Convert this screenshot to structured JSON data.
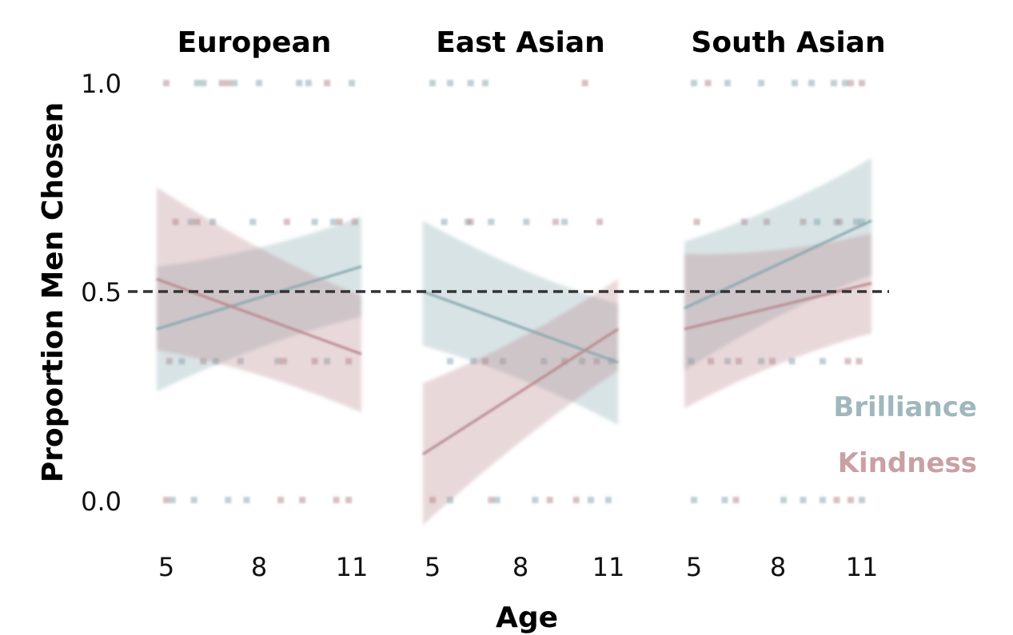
{
  "chart_data": {
    "type": "line",
    "xlabel": "Age",
    "ylabel": "Proportion Men Chosen",
    "ylim": [
      0,
      1
    ],
    "y_ticks": [
      "0.0",
      "0.5",
      "1.0"
    ],
    "x_ticks": [
      "5",
      "8",
      "11"
    ],
    "xlim": [
      5,
      11
    ],
    "reference_line": {
      "y": 0.5,
      "style": "dashed",
      "color": "#333333"
    },
    "legend": {
      "placement": "right",
      "items": [
        {
          "name": "Brilliance",
          "color": "#9fb7bd"
        },
        {
          "name": "Kindness",
          "color": "#c9a0a3"
        }
      ]
    },
    "colors": {
      "Brilliance": "#8aa9b0",
      "Kindness": "#b98a8f"
    },
    "panels": [
      {
        "title": "European",
        "series": [
          {
            "name": "Brilliance",
            "x": [
              5,
              11
            ],
            "y": [
              0.41,
              0.56
            ],
            "ci_low": [
              0.26,
              0.44
            ],
            "ci_high": [
              0.56,
              0.68
            ]
          },
          {
            "name": "Kindness",
            "x": [
              5,
              11
            ],
            "y": [
              0.53,
              0.35
            ],
            "ci_low": [
              0.36,
              0.21
            ],
            "ci_high": [
              0.75,
              0.49
            ]
          }
        ],
        "points": {
          "Brilliance": [
            [
              6.0,
              1
            ],
            [
              6.2,
              1
            ],
            [
              7.2,
              1
            ],
            [
              8.0,
              1
            ],
            [
              9.3,
              1
            ],
            [
              9.6,
              1
            ],
            [
              11.0,
              1
            ],
            [
              5.8,
              0.667
            ],
            [
              6.5,
              0.667
            ],
            [
              7.8,
              0.667
            ],
            [
              9.8,
              0.667
            ],
            [
              10.4,
              0.667
            ],
            [
              5.5,
              0.333
            ],
            [
              6.6,
              0.333
            ],
            [
              7.4,
              0.333
            ],
            [
              8.6,
              0.333
            ],
            [
              10.2,
              0.333
            ],
            [
              5.2,
              0
            ],
            [
              5.9,
              0
            ],
            [
              7.0,
              0
            ],
            [
              7.6,
              0
            ]
          ],
          "Kindness": [
            [
              5.0,
              1
            ],
            [
              6.8,
              1
            ],
            [
              7.0,
              1
            ],
            [
              10.2,
              1
            ],
            [
              5.3,
              0.667
            ],
            [
              6.0,
              0.667
            ],
            [
              8.9,
              0.667
            ],
            [
              10.6,
              0.667
            ],
            [
              11.1,
              0.667
            ],
            [
              5.1,
              0.333
            ],
            [
              6.2,
              0.333
            ],
            [
              8.8,
              0.333
            ],
            [
              9.8,
              0.333
            ],
            [
              10.9,
              0.333
            ],
            [
              5.0,
              0
            ],
            [
              8.7,
              0
            ],
            [
              9.4,
              0
            ],
            [
              10.5,
              0
            ],
            [
              10.9,
              0
            ]
          ]
        }
      },
      {
        "title": "East Asian",
        "series": [
          {
            "name": "Brilliance",
            "x": [
              5,
              11
            ],
            "y": [
              0.5,
              0.33
            ],
            "ci_low": [
              0.37,
              0.18
            ],
            "ci_high": [
              0.67,
              0.47
            ]
          },
          {
            "name": "Kindness",
            "x": [
              5,
              11
            ],
            "y": [
              0.11,
              0.41
            ],
            "ci_low": [
              -0.06,
              0.31
            ],
            "ci_high": [
              0.28,
              0.53
            ]
          }
        ],
        "points": {
          "Brilliance": [
            [
              5.0,
              1
            ],
            [
              5.6,
              1
            ],
            [
              6.3,
              1
            ],
            [
              6.8,
              1
            ],
            [
              5.4,
              0.667
            ],
            [
              6.2,
              0.667
            ],
            [
              7.0,
              0.667
            ],
            [
              8.2,
              0.667
            ],
            [
              9.5,
              0.667
            ],
            [
              5.6,
              0.333
            ],
            [
              6.4,
              0.333
            ],
            [
              7.4,
              0.333
            ],
            [
              8.8,
              0.333
            ],
            [
              10.1,
              0.333
            ],
            [
              11.1,
              0.333
            ],
            [
              5.6,
              0
            ],
            [
              7.2,
              0
            ],
            [
              8.5,
              0
            ],
            [
              10.4,
              0
            ],
            [
              11.0,
              0
            ]
          ],
          "Kindness": [
            [
              10.2,
              1
            ],
            [
              6.3,
              0.667
            ],
            [
              9.2,
              0.667
            ],
            [
              10.7,
              0.667
            ],
            [
              6.8,
              0.333
            ],
            [
              9.5,
              0.333
            ],
            [
              10.6,
              0.333
            ],
            [
              5.0,
              0
            ],
            [
              7.0,
              0
            ],
            [
              9.0,
              0
            ],
            [
              9.9,
              0
            ]
          ]
        }
      },
      {
        "title": "South Asian",
        "series": [
          {
            "name": "Brilliance",
            "x": [
              5,
              11
            ],
            "y": [
              0.46,
              0.67
            ],
            "ci_low": [
              0.31,
              0.54
            ],
            "ci_high": [
              0.62,
              0.82
            ]
          },
          {
            "name": "Kindness",
            "x": [
              5,
              11
            ],
            "y": [
              0.41,
              0.52
            ],
            "ci_low": [
              0.22,
              0.4
            ],
            "ci_high": [
              0.59,
              0.64
            ]
          }
        ],
        "points": {
          "Brilliance": [
            [
              5.0,
              1
            ],
            [
              6.2,
              1
            ],
            [
              7.4,
              1
            ],
            [
              8.6,
              1
            ],
            [
              9.2,
              1
            ],
            [
              10.0,
              1
            ],
            [
              10.4,
              1
            ],
            [
              9.4,
              0.667
            ],
            [
              10.1,
              0.667
            ],
            [
              10.8,
              0.667
            ],
            [
              11.0,
              0.667
            ],
            [
              4.9,
              0.333
            ],
            [
              6.2,
              0.333
            ],
            [
              7.4,
              0.333
            ],
            [
              8.5,
              0.333
            ],
            [
              9.6,
              0.333
            ],
            [
              5.0,
              0
            ],
            [
              6.1,
              0
            ],
            [
              8.2,
              0
            ],
            [
              8.9,
              0
            ],
            [
              9.6,
              0
            ],
            [
              11.0,
              0
            ]
          ],
          "Kindness": [
            [
              5.5,
              1
            ],
            [
              10.6,
              1
            ],
            [
              11.0,
              1
            ],
            [
              5.1,
              0.667
            ],
            [
              6.8,
              0.667
            ],
            [
              7.6,
              0.667
            ],
            [
              8.9,
              0.667
            ],
            [
              10.2,
              0.667
            ],
            [
              5.6,
              0.333
            ],
            [
              6.6,
              0.333
            ],
            [
              7.8,
              0.333
            ],
            [
              10.5,
              0.333
            ],
            [
              10.9,
              0.333
            ],
            [
              6.5,
              0
            ],
            [
              10.1,
              0
            ],
            [
              10.6,
              0
            ]
          ]
        }
      }
    ]
  }
}
